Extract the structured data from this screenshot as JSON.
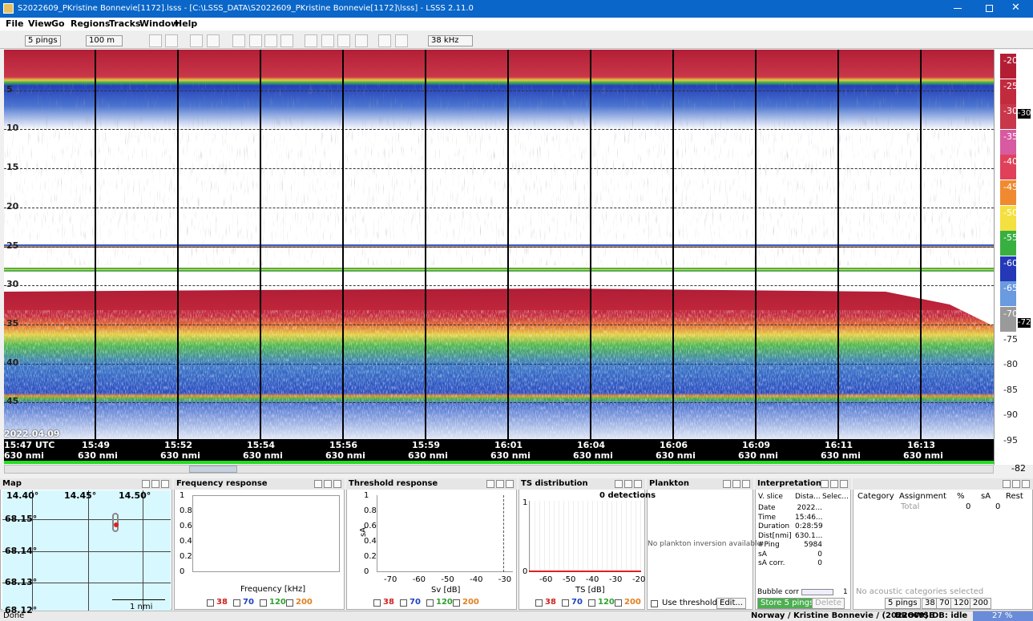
{
  "title_bar": {
    "title": "S2022609_PKristine Bonnevie[1172].lsss - [C:\\LSSS_DATA\\S2022609_PKristine Bonnevie[1172]\\lsss] - LSSS 2.11.0"
  },
  "menu": [
    "File",
    "View",
    "Go",
    "Regions",
    "Tracks",
    "Window",
    "Help"
  ],
  "toolbar": {
    "ping_step": "5 pings",
    "range": "100 m",
    "frequency": "38 kHz"
  },
  "echogram": {
    "depth_labels": [
      "5",
      "10",
      "15",
      "20",
      "25",
      "30",
      "35",
      "40",
      "45"
    ],
    "date": "2022.04.09",
    "times": [
      "15:47 UTC",
      "15:49",
      "15:52",
      "15:54",
      "15:56",
      "15:59",
      "16:01",
      "16:04",
      "16:06",
      "16:09",
      "16:11",
      "16:13"
    ],
    "distances": [
      "630 nmi",
      "630 nmi",
      "630 nmi",
      "630 nmi",
      "630 nmi",
      "630 nmi",
      "630 nmi",
      "630 nmi",
      "630 nmi",
      "630 nmi",
      "630 nmi",
      "630 nmi"
    ],
    "color_scale": [
      "-20",
      "-25",
      "-30",
      "-35",
      "-40",
      "-45",
      "-50",
      "-55",
      "-60",
      "-65",
      "-70",
      "-75",
      "-80",
      "-85",
      "-90",
      "-95"
    ],
    "scale_markers": [
      "-30",
      "-72"
    ],
    "scale_reading": "-82"
  },
  "map": {
    "title": "Map",
    "longitudes": [
      "14.40°",
      "14.45°",
      "14.50°"
    ],
    "latitudes": [
      "68.15°",
      "68.14°",
      "68.13°",
      "68.12°"
    ],
    "scale": "1 nmi"
  },
  "frequency_response": {
    "title": "Frequency response",
    "yticks": [
      "1",
      "0.8",
      "0.6",
      "0.4",
      "0.2",
      "0"
    ],
    "xlabel": "Frequency [kHz]",
    "channels": [
      "38",
      "70",
      "120",
      "200"
    ]
  },
  "threshold_response": {
    "title": "Threshold response",
    "yticks": [
      "1",
      "0.8",
      "0.6",
      "0.4",
      "0.2",
      "0"
    ],
    "ylabel": "sA",
    "xticks": [
      "-70",
      "-60",
      "-50",
      "-40",
      "-30"
    ],
    "xlabel": "Sv [dB]",
    "channels": [
      "38",
      "70",
      "120",
      "200"
    ]
  },
  "ts_distribution": {
    "title": "TS distribution",
    "detections": "0 detections",
    "yticks": [
      "1",
      "0"
    ],
    "xticks": [
      "-60",
      "-50",
      "-40",
      "-30",
      "-20"
    ],
    "xlabel": "TS [dB]",
    "channels": [
      "38",
      "70",
      "120",
      "200"
    ]
  },
  "plankton": {
    "title": "Plankton",
    "message": "No plankton inversion available",
    "use_thresholds": "Use thresholds",
    "edit": "Edit..."
  },
  "interpretation": {
    "title": "Interpretation",
    "columns": [
      "V. slice",
      "Dista...",
      "Selec..."
    ],
    "rows": [
      [
        "Date",
        "2022..."
      ],
      [
        "Time",
        "15:46..."
      ],
      [
        "Duration",
        "0:28:59"
      ],
      [
        "Dist[nmi]",
        "630.1..."
      ],
      [
        "#Ping",
        "5984"
      ],
      [
        "sA",
        "0"
      ],
      [
        "sA corr.",
        "0"
      ]
    ],
    "bubble_corr": "Bubble corr",
    "bubble_value": "1",
    "store": "Store 5 pings",
    "delete": "Delete"
  },
  "categories": {
    "columns": [
      "Category",
      "Assignment",
      "%",
      "sA",
      "Rest"
    ],
    "total": [
      "Total",
      "0",
      "0"
    ],
    "message": "No acoustic categories selected",
    "ping_step": "5 pings",
    "channels": [
      "38",
      "70",
      "120",
      "200"
    ]
  },
  "status": {
    "message": "Done",
    "survey": "Norway / Kristine Bonnevie / (2022609)",
    "mode": "BROWSE",
    "db": "DB: idle",
    "progress": "27 %"
  }
}
